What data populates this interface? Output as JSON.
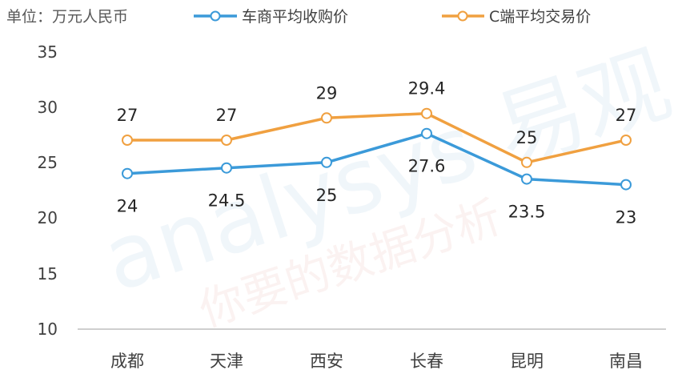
{
  "chart_data": {
    "type": "line",
    "unit_label": "单位：万元人民币",
    "categories": [
      "成都",
      "天津",
      "西安",
      "长春",
      "昆明",
      "南昌"
    ],
    "series": [
      {
        "name": "车商平均收购价",
        "color": "#3b9ad9",
        "values": [
          24,
          24.5,
          25,
          27.6,
          23.5,
          23
        ],
        "labels": [
          "24",
          "24.5",
          "25",
          "27.6",
          "23.5",
          "23"
        ]
      },
      {
        "name": "C端平均交易价",
        "color": "#f0a040",
        "values": [
          27,
          27,
          29,
          29.4,
          25,
          27
        ],
        "labels": [
          "27",
          "27",
          "29",
          "29.4",
          "25",
          "27"
        ]
      }
    ],
    "y_ticks": [
      "10",
      "15",
      "20",
      "25",
      "30",
      "35"
    ],
    "ylim": [
      10,
      35
    ],
    "grid": false,
    "legend_position": "top"
  }
}
